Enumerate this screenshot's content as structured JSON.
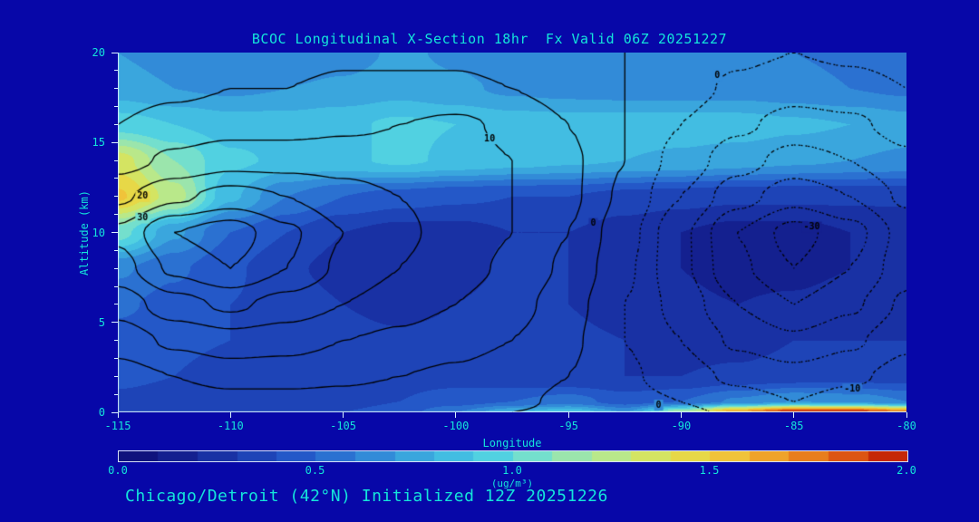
{
  "title": "BCOC Longitudinal X-Section 18hr  Fx Valid 06Z 20251227",
  "caption": "Chicago/Detroit (42°N) Initialized 12Z 20251226",
  "colors": {
    "background": "#0707a8",
    "text": "#14e4da",
    "tick": "#d9f3ff",
    "contour_line": "#000000"
  },
  "axes": {
    "x": {
      "label": "Longitude",
      "min": -115,
      "max": -80,
      "ticks": [
        {
          "v": -115,
          "label": "-115"
        },
        {
          "v": -110,
          "label": "-110"
        },
        {
          "v": -105,
          "label": "-105"
        },
        {
          "v": -100,
          "label": "-100"
        },
        {
          "v": -95,
          "label": "-95"
        },
        {
          "v": -90,
          "label": "-90"
        },
        {
          "v": -85,
          "label": "-85"
        },
        {
          "v": -80,
          "label": "-80"
        }
      ]
    },
    "y": {
      "label": "Altitude (km)",
      "min": 0,
      "max": 20,
      "minor_step": 1,
      "ticks": [
        {
          "v": 0,
          "label": "0"
        },
        {
          "v": 5,
          "label": "5"
        },
        {
          "v": 10,
          "label": "10"
        },
        {
          "v": 15,
          "label": "15"
        },
        {
          "v": 20,
          "label": "20"
        }
      ]
    }
  },
  "colorbar": {
    "min": 0,
    "max": 2,
    "units": "(ug/m³)",
    "ticks": [
      {
        "v": 0.0,
        "label": "0.0"
      },
      {
        "v": 0.5,
        "label": "0.5"
      },
      {
        "v": 1.0,
        "label": "1.0"
      },
      {
        "v": 1.5,
        "label": "1.5"
      },
      {
        "v": 2.0,
        "label": "2.0"
      }
    ]
  },
  "chart_data": {
    "type": "heatmap",
    "title": "BCOC Longitudinal X-Section 18hr  Fx Valid 06Z 20251227",
    "xlabel": "Longitude",
    "ylabel": "Altitude (km)",
    "xlim": [
      -115,
      -80
    ],
    "ylim": [
      0,
      20
    ],
    "x": [
      -115,
      -112.5,
      -110,
      -107.5,
      -105,
      -102.5,
      -100,
      -97.5,
      -95,
      -92.5,
      -90,
      -87.5,
      -85,
      -82.5,
      -80
    ],
    "y_rows_top_to_bottom": [
      20,
      18,
      16,
      14,
      12,
      10,
      8,
      6,
      4,
      2,
      0.6,
      0
    ],
    "fill_units": "ug/m3",
    "fill_levels_step": 0.1,
    "fill_field_ugm3": [
      [
        0.7,
        0.65,
        0.6,
        0.6,
        0.65,
        0.72,
        0.68,
        0.62,
        0.6,
        0.6,
        0.6,
        0.6,
        0.6,
        0.58,
        0.55
      ],
      [
        0.75,
        0.7,
        0.68,
        0.7,
        0.72,
        0.76,
        0.72,
        0.68,
        0.66,
        0.65,
        0.65,
        0.65,
        0.63,
        0.6,
        0.58
      ],
      [
        0.95,
        0.9,
        0.85,
        0.85,
        0.88,
        0.92,
        0.9,
        0.86,
        0.85,
        0.85,
        0.85,
        0.85,
        0.82,
        0.8,
        0.75
      ],
      [
        1.35,
        1.1,
        0.92,
        0.88,
        0.88,
        0.92,
        0.88,
        0.85,
        0.82,
        0.8,
        0.78,
        0.75,
        0.72,
        0.7,
        0.68
      ],
      [
        1.52,
        1.25,
        0.82,
        0.6,
        0.5,
        0.45,
        0.42,
        0.4,
        0.4,
        0.36,
        0.34,
        0.32,
        0.32,
        0.32,
        0.32
      ],
      [
        1.05,
        0.72,
        0.5,
        0.4,
        0.3,
        0.26,
        0.26,
        0.3,
        0.3,
        0.25,
        0.2,
        0.16,
        0.16,
        0.2,
        0.22
      ],
      [
        0.62,
        0.52,
        0.42,
        0.32,
        0.26,
        0.22,
        0.26,
        0.32,
        0.3,
        0.25,
        0.2,
        0.16,
        0.16,
        0.2,
        0.22
      ],
      [
        0.52,
        0.46,
        0.4,
        0.36,
        0.3,
        0.26,
        0.3,
        0.34,
        0.3,
        0.26,
        0.22,
        0.2,
        0.22,
        0.26,
        0.26
      ],
      [
        0.46,
        0.42,
        0.4,
        0.36,
        0.34,
        0.32,
        0.34,
        0.34,
        0.32,
        0.3,
        0.26,
        0.26,
        0.3,
        0.3,
        0.3
      ],
      [
        0.42,
        0.4,
        0.36,
        0.36,
        0.36,
        0.36,
        0.36,
        0.32,
        0.3,
        0.3,
        0.3,
        0.32,
        0.34,
        0.35,
        0.35
      ],
      [
        0.38,
        0.36,
        0.32,
        0.32,
        0.36,
        0.4,
        0.45,
        0.5,
        0.55,
        0.45,
        0.5,
        0.62,
        0.7,
        0.68,
        0.6
      ],
      [
        0.36,
        0.35,
        0.32,
        0.35,
        0.4,
        0.45,
        0.6,
        0.8,
        0.9,
        0.7,
        1.2,
        1.7,
        2.0,
        2.0,
        1.8
      ]
    ],
    "contour_field": [
      [
        2,
        2,
        3,
        3,
        4,
        4,
        4,
        3,
        2,
        0,
        -2,
        -4,
        -5,
        -4,
        -3
      ],
      [
        3,
        4,
        5,
        5,
        6,
        6,
        6,
        5,
        3,
        0,
        -3,
        -6,
        -8,
        -7,
        -5
      ],
      [
        5,
        7,
        8,
        8,
        9,
        10,
        11,
        9,
        5,
        0,
        -5,
        -9,
        -12,
        -11,
        -8
      ],
      [
        8,
        11,
        13,
        13,
        13,
        12,
        12,
        10,
        6,
        0,
        -7,
        -13,
        -17,
        -15,
        -11
      ],
      [
        14,
        19,
        22,
        20,
        17,
        15,
        13,
        10,
        6,
        -1,
        -10,
        -18,
        -23,
        -20,
        -14
      ],
      [
        21,
        30,
        33,
        26,
        20,
        16,
        13,
        10,
        5,
        -3,
        -14,
        -25,
        -32,
        -27,
        -18
      ],
      [
        18,
        26,
        30,
        25,
        19,
        15,
        12,
        9,
        4,
        -4,
        -14,
        -24,
        -30,
        -25,
        -17
      ],
      [
        12,
        18,
        21,
        18,
        15,
        12,
        10,
        7,
        2,
        -5,
        -12,
        -20,
        -25,
        -21,
        -14
      ],
      [
        7,
        11,
        13,
        12,
        10,
        9,
        7,
        5,
        1,
        -5,
        -10,
        -16,
        -19,
        -16,
        -11
      ],
      [
        3,
        5,
        7,
        7,
        6,
        5,
        4,
        2,
        0,
        -4,
        -8,
        -11,
        -13,
        -11,
        -8
      ],
      [
        1,
        2,
        3,
        3,
        3,
        2,
        2,
        1,
        -1,
        -3,
        -5,
        -8,
        -10,
        -8,
        -6
      ],
      [
        0,
        1,
        1,
        1,
        1,
        1,
        1,
        0,
        -1,
        -2,
        -4,
        -6,
        -8,
        -7,
        -5
      ]
    ],
    "contour_levels_solid": [
      0,
      5,
      10,
      15,
      20,
      25,
      30
    ],
    "contour_levels_dotted": [
      -30,
      -25,
      -20,
      -15,
      -10,
      -5
    ],
    "contour_labels": [
      {
        "text": "20",
        "lon": -113.9,
        "alt": 12.0
      },
      {
        "text": "30",
        "lon": -113.9,
        "alt": 10.8
      },
      {
        "text": "10",
        "lon": -98.5,
        "alt": 15.2
      },
      {
        "text": "0",
        "lon": -88.4,
        "alt": 18.7
      },
      {
        "text": "0",
        "lon": -93.9,
        "alt": 10.5
      },
      {
        "text": "0",
        "lon": -91.0,
        "alt": 0.4
      },
      {
        "text": "-30",
        "lon": -84.2,
        "alt": 10.3
      },
      {
        "text": "-10",
        "lon": -82.4,
        "alt": 1.3
      }
    ],
    "colormap_stops": [
      [
        0.0,
        "#0c0c74"
      ],
      [
        0.15,
        "#14208f"
      ],
      [
        0.3,
        "#1b3aae"
      ],
      [
        0.45,
        "#2458c8"
      ],
      [
        0.6,
        "#2e7ed5"
      ],
      [
        0.75,
        "#3aa6dd"
      ],
      [
        0.9,
        "#46c9e5"
      ],
      [
        1.0,
        "#5cd9dc"
      ],
      [
        1.1,
        "#8ce4bd"
      ],
      [
        1.25,
        "#b9e88a"
      ],
      [
        1.4,
        "#e2e24e"
      ],
      [
        1.55,
        "#f0c33a"
      ],
      [
        1.7,
        "#ee9322"
      ],
      [
        1.85,
        "#dd5512"
      ],
      [
        2.0,
        "#bb1100"
      ]
    ]
  }
}
